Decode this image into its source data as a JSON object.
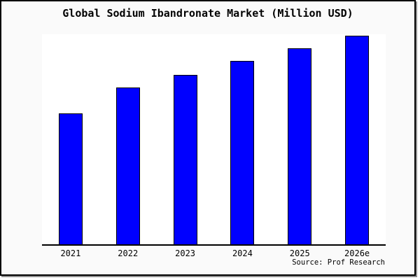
{
  "chart_data": {
    "type": "bar",
    "title": "Global Sodium Ibandronate Market (Million USD)",
    "categories": [
      "2021",
      "2022",
      "2023",
      "2024",
      "2025",
      "2026e"
    ],
    "values": [
      62.3,
      74.7,
      80.7,
      87.3,
      93.3,
      99.3
    ],
    "values_note": "no numeric y-axis labels shown; values are relative bar heights as percent of plot height",
    "xlabel": "",
    "ylabel": "",
    "ylim": [
      0,
      100
    ],
    "grid": false,
    "legend": false,
    "y_axis_labels_visible": false,
    "source_note": "Source: Prof Research"
  },
  "colors": {
    "canvas_bg": "#fafafa",
    "plot_bg": "#ffffff",
    "frame_border": "#000000",
    "shadow": "#8f8f8f",
    "bar_fill": "#0000ff",
    "bar_border": "#000000",
    "axis": "#000000",
    "text": "#000000"
  }
}
